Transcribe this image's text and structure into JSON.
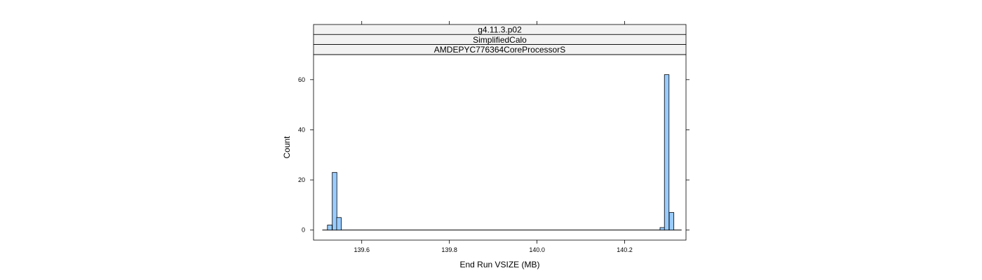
{
  "chart_data": {
    "type": "bar",
    "strips": [
      "g4.11.3.p02",
      "SimplifiedCalo",
      "AMDEPYC776364CoreProcessorS"
    ],
    "xlabel": "End Run VSIZE (MB)",
    "ylabel": "Count",
    "xlim": [
      139.49,
      140.34
    ],
    "ylim": [
      -4,
      70
    ],
    "xticks": [
      139.6,
      139.8,
      140.0,
      140.2
    ],
    "xtick_labels": [
      "139.6",
      "139.8",
      "140.0",
      "140.2"
    ],
    "yticks": [
      0,
      20,
      40,
      60
    ],
    "ytick_labels": [
      "0",
      "20",
      "40",
      "60"
    ],
    "baseline_range": [
      139.51,
      140.33
    ],
    "bin_width": 0.0105,
    "bins": [
      {
        "x": 139.527,
        "count": 2
      },
      {
        "x": 139.538,
        "count": 23
      },
      {
        "x": 139.548,
        "count": 5
      },
      {
        "x": 140.286,
        "count": 1
      },
      {
        "x": 140.296,
        "count": 62
      },
      {
        "x": 140.307,
        "count": 7
      }
    ],
    "bar_color": "#99ccff",
    "strip_color": "#f2f2f2",
    "grid": false
  }
}
